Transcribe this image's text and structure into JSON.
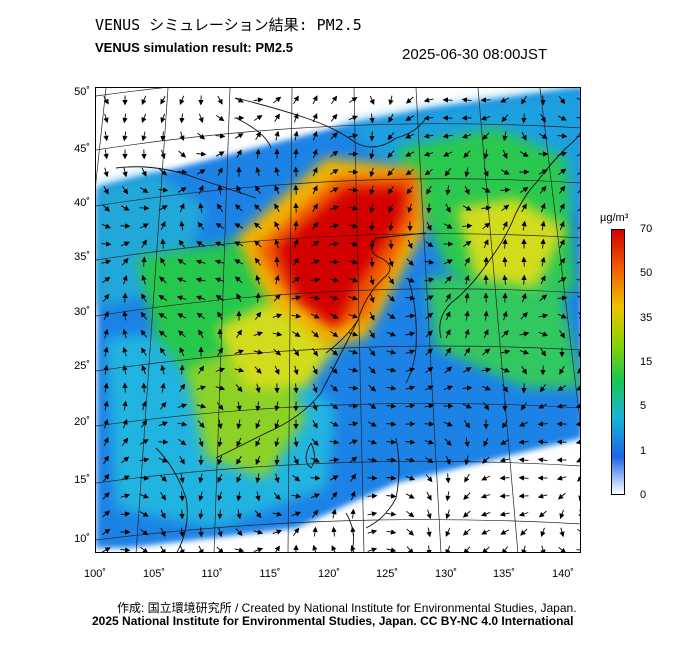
{
  "title_ja": "VENUS シミュレーション結果: PM2.5",
  "title_en": "VENUS simulation result: PM2.5",
  "timestamp": "2025-06-30 08:00JST",
  "lat_labels": [
    "50˚",
    "45˚",
    "40˚",
    "35˚",
    "30˚",
    "25˚",
    "20˚",
    "15˚",
    "10˚"
  ],
  "lon_labels": [
    "100˚",
    "105˚",
    "110˚",
    "115˚",
    "120˚",
    "125˚",
    "130˚",
    "135˚",
    "140˚"
  ],
  "colorbar": {
    "unit": "µg/m³",
    "ticks": [
      "70",
      "50",
      "35",
      "15",
      "5",
      "1",
      "0"
    ],
    "colors": [
      "#d40000",
      "#f05a00",
      "#f0c000",
      "#8cd200",
      "#18c850",
      "#18b4d8",
      "#1e64e6",
      "#ffffff"
    ]
  },
  "credit_line1": "作成: 国立環境研究所 / Created by National Institute for Environmental Studies, Japan.",
  "credit_line2": "2025 National Institute for Environmental Studies, Japan. CC BY-NC 4.0 International"
}
